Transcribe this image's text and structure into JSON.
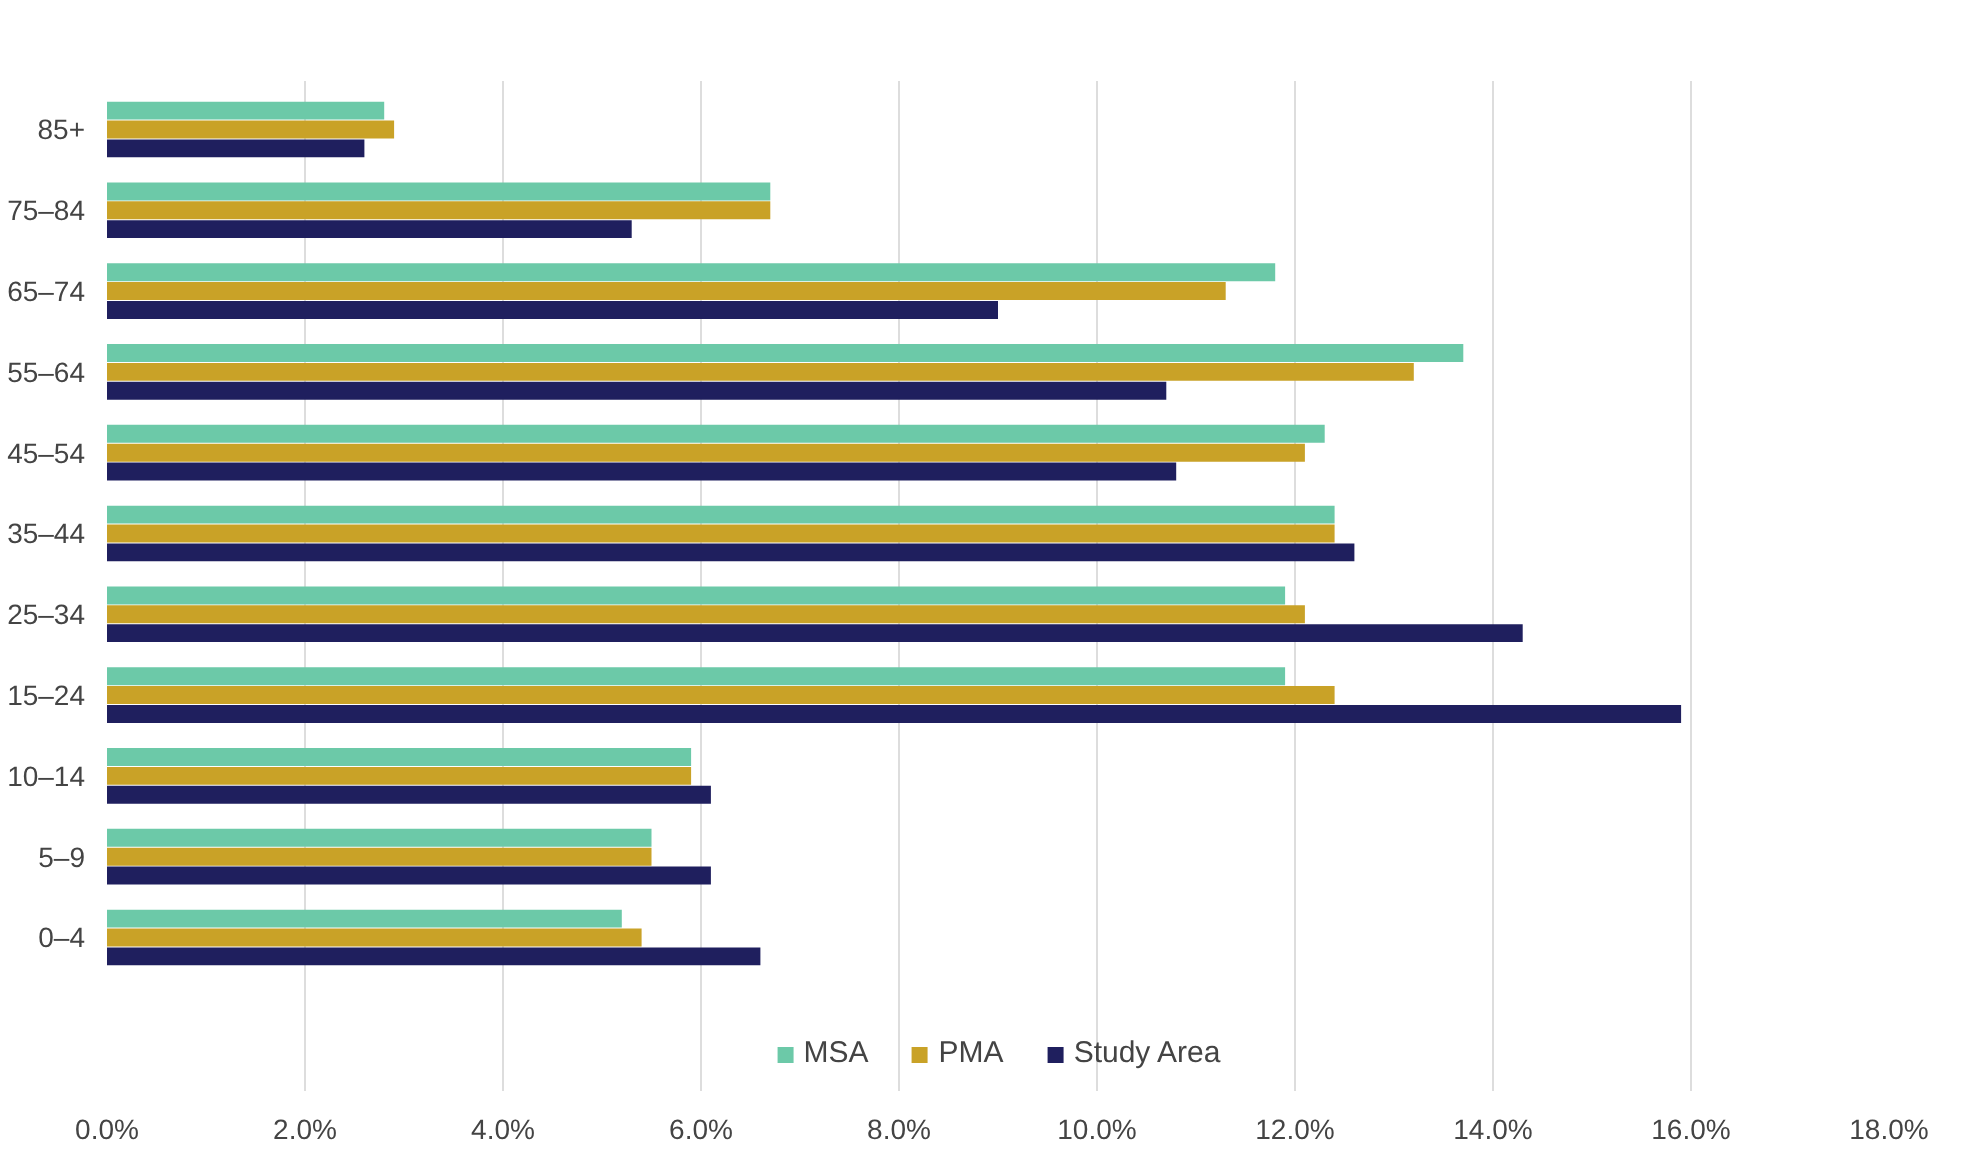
{
  "chart_data": {
    "type": "bar",
    "orientation": "horizontal",
    "categories": [
      "85+",
      "75–84",
      "65–74",
      "55–64",
      "45–54",
      "35–44",
      "25–34",
      "15–24",
      "10–14",
      "5–9",
      "0–4"
    ],
    "series": [
      {
        "name": "MSA",
        "color": "#6cc9a8",
        "values": [
          2.8,
          6.7,
          11.8,
          13.7,
          12.3,
          12.4,
          11.9,
          11.9,
          5.9,
          5.5,
          5.2
        ]
      },
      {
        "name": "PMA",
        "color": "#c9a227",
        "values": [
          2.9,
          6.7,
          11.3,
          13.2,
          12.1,
          12.4,
          12.1,
          12.4,
          5.9,
          5.5,
          5.4
        ]
      },
      {
        "name": "Study Area",
        "color": "#1f1f5e",
        "values": [
          2.6,
          5.3,
          9.0,
          10.7,
          10.8,
          12.6,
          14.3,
          15.9,
          6.1,
          6.1,
          6.6
        ]
      }
    ],
    "xlim": [
      0,
      18
    ],
    "xticks": [
      {
        "value": 0,
        "label": "0.0%"
      },
      {
        "value": 2,
        "label": "2.0%"
      },
      {
        "value": 4,
        "label": "4.0%"
      },
      {
        "value": 6,
        "label": "6.0%"
      },
      {
        "value": 8,
        "label": "8.0%"
      },
      {
        "value": 10,
        "label": "10.0%"
      },
      {
        "value": 12,
        "label": "12.0%"
      },
      {
        "value": 14,
        "label": "14.0%"
      },
      {
        "value": 16,
        "label": "16.0%"
      },
      {
        "value": 18,
        "label": "18.0%"
      }
    ],
    "grid": "x",
    "legend": "bottom"
  }
}
